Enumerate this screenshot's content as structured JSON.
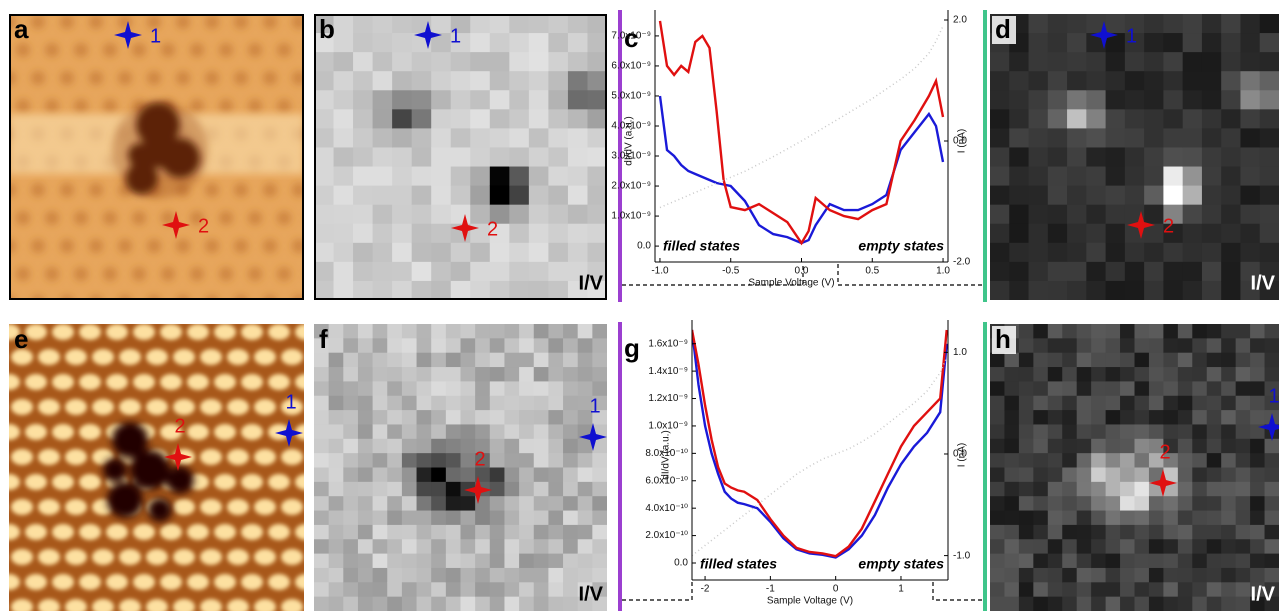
{
  "panels": [
    {
      "letter": "a",
      "markers": [
        {
          "label": "1",
          "color": "#1010d0"
        },
        {
          "label": "2",
          "color": "#e01010"
        }
      ]
    },
    {
      "letter": "b",
      "markers": [
        {
          "label": "1",
          "color": "#1010d0"
        },
        {
          "label": "2",
          "color": "#e01010"
        }
      ],
      "tag": "I/V"
    },
    {
      "letter": "d",
      "markers": [
        {
          "label": "1",
          "color": "#1010d0"
        },
        {
          "label": "2",
          "color": "#e01010"
        }
      ],
      "tag": "I/V"
    },
    {
      "letter": "e",
      "markers": [
        {
          "label": "1",
          "color": "#1010d0"
        },
        {
          "label": "2",
          "color": "#e01010"
        }
      ]
    },
    {
      "letter": "f",
      "markers": [
        {
          "label": "1",
          "color": "#1010d0"
        },
        {
          "label": "2",
          "color": "#e01010"
        }
      ],
      "tag": "I/V"
    },
    {
      "letter": "h",
      "markers": [
        {
          "label": "1",
          "color": "#1010d0"
        },
        {
          "label": "2",
          "color": "#e01010"
        }
      ],
      "tag": "I/V"
    }
  ],
  "chart_data": [
    {
      "type": "line",
      "label": "c",
      "x_label": "Sample Voltage (V)",
      "y_label": "dI/dV (a.u.)",
      "y2_label": "I (nA)",
      "annotations": [
        "filled states",
        "empty states"
      ],
      "xlim": [
        -1.035,
        1.035
      ],
      "ylim": [
        -5.3e-10,
        7.53e-09
      ],
      "y2lim": [
        -2.0,
        2.0
      ],
      "xticks": [
        {
          "value": -1,
          "label": "-1.0"
        },
        -0.5,
        {
          "value": 0,
          "label": "0.0"
        },
        0.5,
        {
          "value": 1,
          "label": "1.0"
        }
      ],
      "yticks": [
        {
          "value": 0,
          "label": "0.0"
        },
        {
          "value": 1e-09,
          "label": "1.0x10⁻⁹"
        },
        {
          "value": 2e-09,
          "label": "2.0x10⁻⁹"
        },
        {
          "value": 3e-09,
          "label": "3.0x10⁻⁹"
        },
        {
          "value": 4e-09,
          "label": "4.0x10⁻⁹"
        },
        {
          "value": 5e-09,
          "label": "5.0x10⁻⁹"
        },
        {
          "value": 6e-09,
          "label": "6.0x10⁻⁹"
        },
        {
          "value": 7e-09,
          "label": "7.0x10⁻⁹"
        }
      ],
      "y2ticks": [
        {
          "value": -2,
          "label": "-2.0"
        },
        {
          "value": 0,
          "label": "0.0"
        },
        {
          "value": 2,
          "label": "2.0"
        }
      ],
      "x": [
        -1,
        -0.95,
        -0.9,
        -0.85,
        -0.8,
        -0.75,
        -0.7,
        -0.65,
        -0.6,
        -0.55,
        -0.5,
        -0.4,
        -0.3,
        -0.2,
        -0.1,
        0,
        0.05,
        0.1,
        0.2,
        0.3,
        0.4,
        0.5,
        0.6,
        0.7,
        0.8,
        0.9,
        0.95,
        1.0
      ],
      "series": [
        {
          "color": "#1a1ad8",
          "values": [
            5e-09,
            3.2e-09,
            3e-09,
            2.7e-09,
            2.5e-09,
            2.4e-09,
            2.3e-09,
            2.2e-09,
            2.1e-09,
            2.05e-09,
            2e-09,
            1.5e-09,
            7e-10,
            4e-10,
            3e-10,
            1e-10,
            2e-10,
            7e-10,
            1.4e-09,
            1.2e-09,
            1.2e-09,
            1.4e-09,
            1.7e-09,
            3.2e-09,
            3.8e-09,
            4.4e-09,
            4e-09,
            2.8e-09
          ]
        },
        {
          "color": "#e01010",
          "values": [
            7.5e-09,
            6e-09,
            5.7e-09,
            6e-09,
            5.8e-09,
            6.8e-09,
            7e-09,
            6.6e-09,
            4.5e-09,
            2.2e-09,
            1.3e-09,
            1.2e-09,
            1.4e-09,
            1.1e-09,
            8e-10,
            1e-10,
            5e-10,
            1.6e-09,
            1.2e-09,
            1e-09,
            9e-10,
            1.2e-09,
            1.4e-09,
            3.5e-09,
            4.2e-09,
            5e-09,
            5.5e-09,
            4.3e-09
          ]
        },
        {
          "color": "#c8c8c8",
          "style": "dotted",
          "axis": "y2",
          "values": [
            -1.1,
            -1.05,
            -1.0,
            -0.95,
            -0.9,
            -0.85,
            -0.8,
            -0.75,
            -0.7,
            -0.65,
            -0.6,
            -0.5,
            -0.38,
            -0.26,
            -0.13,
            0,
            0.07,
            0.14,
            0.28,
            0.42,
            0.56,
            0.7,
            0.86,
            1.02,
            1.2,
            1.45,
            1.65,
            1.9
          ]
        }
      ]
    },
    {
      "type": "line",
      "label": "g",
      "x_label": "Sample Voltage (V)",
      "y_label": "dI/dV (a.u.)",
      "y2_label": "I (nA)",
      "annotations": [
        "filled states",
        "empty states"
      ],
      "xlim": [
        -2.2,
        1.72
      ],
      "ylim": [
        -1.24e-10,
        1.7e-09
      ],
      "y2lim": [
        -1.24,
        1.22
      ],
      "xticks": [
        -2,
        -1,
        0,
        1
      ],
      "yticks": [
        {
          "value": 0,
          "label": "0.0"
        },
        {
          "value": 2e-10,
          "label": "2.0x10⁻¹⁰"
        },
        {
          "value": 4e-10,
          "label": "4.0x10⁻¹⁰"
        },
        {
          "value": 6e-10,
          "label": "6.0x10⁻¹⁰"
        },
        {
          "value": 8e-10,
          "label": "8.0x10⁻¹⁰"
        },
        {
          "value": 1e-09,
          "label": "1.0x10⁻⁹"
        },
        {
          "value": 1.2e-09,
          "label": "1.2x10⁻⁹"
        },
        {
          "value": 1.4e-09,
          "label": "1.4x10⁻⁹"
        },
        {
          "value": 1.6e-09,
          "label": "1.6x10⁻⁹"
        }
      ],
      "y2ticks": [
        {
          "value": -1,
          "label": "-1.0"
        },
        {
          "value": 0,
          "label": "0.0"
        },
        {
          "value": 1,
          "label": "1.0"
        }
      ],
      "x": [
        -2.2,
        -2.1,
        -2,
        -1.9,
        -1.8,
        -1.7,
        -1.6,
        -1.5,
        -1.4,
        -1.2,
        -1,
        -0.8,
        -0.6,
        -0.4,
        -0.2,
        0,
        0.2,
        0.4,
        0.6,
        0.8,
        1,
        1.2,
        1.4,
        1.6,
        1.7
      ],
      "series": [
        {
          "color": "#1a1ad8",
          "values": [
            1.7e-09,
            1.3e-09,
            1e-09,
            8e-10,
            6.5e-10,
            5.2e-10,
            4.7e-10,
            4.4e-10,
            4.3e-10,
            4e-10,
            3e-10,
            1.8e-10,
            1e-10,
            7e-11,
            6e-11,
            4e-11,
            1e-10,
            2e-10,
            3.5e-10,
            5.5e-10,
            7.2e-10,
            8.5e-10,
            9.5e-10,
            1.1e-09,
            1.6e-09
          ]
        },
        {
          "color": "#e01010",
          "values": [
            1.7e-09,
            1.45e-09,
            1.15e-09,
            9e-10,
            7e-10,
            5.8e-10,
            5.5e-10,
            5.3e-10,
            5.2e-10,
            4.6e-10,
            3.2e-10,
            2e-10,
            1.1e-10,
            8e-11,
            7e-11,
            5e-11,
            1.2e-10,
            2.5e-10,
            4.5e-10,
            6.5e-10,
            8.5e-10,
            1e-09,
            1.1e-09,
            1.2e-09,
            1.7e-09
          ]
        },
        {
          "color": "#c8c8c8",
          "style": "dotted",
          "axis": "y2",
          "values": [
            -1.0,
            -0.95,
            -0.9,
            -0.85,
            -0.8,
            -0.75,
            -0.7,
            -0.65,
            -0.6,
            -0.5,
            -0.4,
            -0.3,
            -0.2,
            -0.12,
            -0.05,
            0,
            0.05,
            0.12,
            0.2,
            0.3,
            0.4,
            0.5,
            0.62,
            0.8,
            0.95
          ]
        }
      ]
    }
  ]
}
